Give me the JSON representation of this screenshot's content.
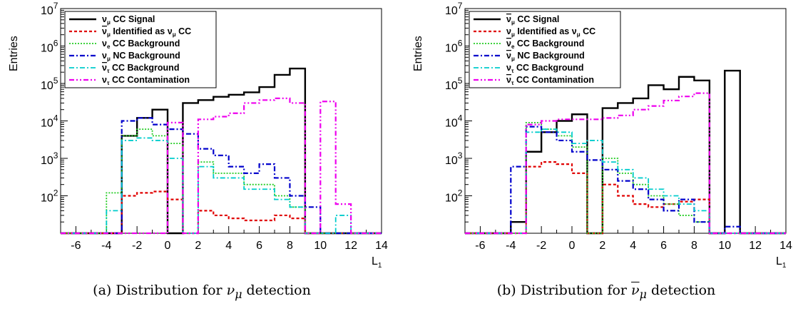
{
  "chart_data": [
    {
      "type": "histogram",
      "panel": "a",
      "ylabel": "Entries",
      "xlabel_base": "L",
      "xlabel_sub": "1",
      "xlim": [
        -7,
        14
      ],
      "ylim_log": [
        10,
        10000000
      ],
      "y_scale": "log",
      "x_ticks": [
        "-6",
        "-4",
        "-2",
        "0",
        "2",
        "4",
        "6",
        "8",
        "10",
        "12",
        "14"
      ],
      "y_ticks": [
        {
          "base": "10",
          "exp": "2"
        },
        {
          "base": "10",
          "exp": "3"
        },
        {
          "base": "10",
          "exp": "4"
        },
        {
          "base": "10",
          "exp": "5"
        },
        {
          "base": "10",
          "exp": "6"
        },
        {
          "base": "10",
          "exp": "7"
        }
      ],
      "bin_edges": [
        -7,
        -6,
        -5,
        -4,
        -3,
        -2,
        -1,
        0,
        1,
        2,
        3,
        4,
        5,
        6,
        7,
        8,
        9,
        10,
        11,
        12,
        13,
        14
      ],
      "legend_position": "top-left",
      "series": [
        {
          "nu": "ν",
          "bar": false,
          "sub": "μ",
          "label": "CC Signal",
          "color": "#000000",
          "dash": "",
          "width": 2.4,
          "values": [
            0,
            0,
            0,
            0,
            4000,
            12000,
            20000,
            0,
            30000,
            36000,
            44000,
            50000,
            58000,
            80000,
            170000,
            250000,
            0,
            0,
            0,
            0,
            0
          ]
        },
        {
          "nu": "ν",
          "bar": true,
          "sub": "μ",
          "label": "Identified as ν",
          "label_sub": "μ",
          "label_tail": "CC",
          "color": "#e00000",
          "dash": "4 3",
          "width": 2.2,
          "values": [
            0,
            0,
            0,
            0,
            100,
            120,
            130,
            80,
            0,
            40,
            30,
            25,
            22,
            22,
            30,
            25,
            0,
            0,
            0,
            0,
            0
          ]
        },
        {
          "nu": "ν",
          "bar": false,
          "sub": "e",
          "label": "CC Background",
          "color": "#22cc22",
          "dash": "2 2",
          "width": 1.8,
          "values": [
            0,
            0,
            0,
            120,
            4000,
            6000,
            4000,
            2500,
            0,
            800,
            400,
            400,
            200,
            200,
            100,
            50,
            0,
            0,
            0,
            0,
            0
          ]
        },
        {
          "nu": "ν",
          "bar": false,
          "sub": "μ",
          "label": "NC Background",
          "color": "#0000cc",
          "dash": "7 3 2 3",
          "width": 2.2,
          "values": [
            0,
            0,
            0,
            0,
            10000,
            12000,
            8000,
            6000,
            4500,
            1800,
            1200,
            600,
            400,
            700,
            300,
            100,
            50,
            0,
            0,
            0,
            0
          ]
        },
        {
          "nu": "ν",
          "bar": true,
          "sub": "τ",
          "label": "CC Background",
          "color": "#00cccc",
          "dash": "7 3 2 3",
          "width": 1.8,
          "values": [
            0,
            0,
            0,
            40,
            3000,
            3500,
            3000,
            1000,
            0,
            600,
            300,
            300,
            150,
            150,
            80,
            50,
            0,
            0,
            30,
            0,
            0
          ]
        },
        {
          "nu": "ν",
          "bar": false,
          "sub": "τ",
          "label": "CC Contamination",
          "color": "#ee00ee",
          "dash": "7 3 2 3 2 3",
          "width": 2.2,
          "values": [
            0,
            0,
            0,
            0,
            0,
            0,
            0,
            9000,
            0,
            11000,
            13000,
            16000,
            30000,
            36000,
            40000,
            30000,
            0,
            33000,
            60,
            0,
            0
          ]
        }
      ]
    },
    {
      "type": "histogram",
      "panel": "b",
      "ylabel": "Entries",
      "xlabel_base": "L",
      "xlabel_sub": "1",
      "xlim": [
        -7,
        14
      ],
      "ylim_log": [
        10,
        10000000
      ],
      "y_scale": "log",
      "x_ticks": [
        "-6",
        "-4",
        "-2",
        "0",
        "2",
        "4",
        "6",
        "8",
        "10",
        "12",
        "14"
      ],
      "y_ticks": [
        {
          "base": "10",
          "exp": "2"
        },
        {
          "base": "10",
          "exp": "3"
        },
        {
          "base": "10",
          "exp": "4"
        },
        {
          "base": "10",
          "exp": "5"
        },
        {
          "base": "10",
          "exp": "6"
        },
        {
          "base": "10",
          "exp": "7"
        }
      ],
      "bin_edges": [
        -7,
        -6,
        -5,
        -4,
        -3,
        -2,
        -1,
        0,
        1,
        2,
        3,
        4,
        5,
        6,
        7,
        8,
        9,
        10,
        11,
        12,
        13,
        14
      ],
      "legend_position": "top-left",
      "series": [
        {
          "nu": "ν",
          "bar": true,
          "sub": "μ",
          "label": "CC Signal",
          "color": "#000000",
          "dash": "",
          "width": 2.4,
          "values": [
            0,
            0,
            0,
            20,
            1500,
            5000,
            10000,
            15000,
            0,
            22000,
            30000,
            40000,
            90000,
            70000,
            150000,
            120000,
            0,
            220000,
            0,
            0,
            0
          ]
        },
        {
          "nu": "ν",
          "bar": false,
          "sub": "μ",
          "label": "Identified as ν",
          "label_bar": true,
          "label_sub": "μ",
          "label_tail": "CC",
          "color": "#e00000",
          "dash": "4 3",
          "width": 2.2,
          "values": [
            0,
            0,
            0,
            0,
            600,
            800,
            700,
            400,
            0,
            200,
            100,
            60,
            50,
            60,
            70,
            80,
            0,
            0,
            0,
            0,
            0
          ]
        },
        {
          "nu": "ν",
          "bar": true,
          "sub": "e",
          "label": "CC Background",
          "color": "#22cc22",
          "dash": "2 2",
          "width": 1.8,
          "values": [
            0,
            0,
            0,
            0,
            9000,
            6000,
            4000,
            2000,
            0,
            1000,
            400,
            200,
            100,
            60,
            30,
            20,
            0,
            0,
            0,
            0,
            0
          ]
        },
        {
          "nu": "ν",
          "bar": true,
          "sub": "μ",
          "label": "NC Background",
          "color": "#0000cc",
          "dash": "7 3 2 3",
          "width": 2.2,
          "values": [
            0,
            0,
            0,
            600,
            7000,
            5000,
            3000,
            1500,
            900,
            500,
            250,
            150,
            80,
            40,
            80,
            20,
            0,
            15,
            0,
            0,
            0
          ]
        },
        {
          "nu": "ν",
          "bar": false,
          "sub": "τ",
          "label": "CC Background",
          "color": "#00cccc",
          "dash": "7 3 2 3",
          "width": 1.8,
          "values": [
            0,
            0,
            0,
            0,
            5000,
            6000,
            5000,
            2500,
            3000,
            800,
            500,
            300,
            150,
            100,
            60,
            40,
            0,
            0,
            0,
            0,
            0
          ]
        },
        {
          "nu": "ν",
          "bar": true,
          "sub": "τ",
          "label": "CC Contamination",
          "color": "#ee00ee",
          "dash": "7 3 2 3 2 3",
          "width": 2.2,
          "values": [
            0,
            0,
            0,
            0,
            8000,
            10000,
            11000,
            11000,
            11000,
            12000,
            14000,
            20000,
            25000,
            35000,
            45000,
            55000,
            0,
            0,
            0,
            0,
            0
          ]
        }
      ]
    }
  ],
  "captions": [
    {
      "prefix": "(a) Distribution for ",
      "symbol": "ν",
      "symbol_bar": false,
      "symbol_sub": "μ",
      "suffix": " detection"
    },
    {
      "prefix": "(b) Distribution for ",
      "symbol": "ν",
      "symbol_bar": true,
      "symbol_sub": "μ",
      "suffix": " detection"
    }
  ]
}
